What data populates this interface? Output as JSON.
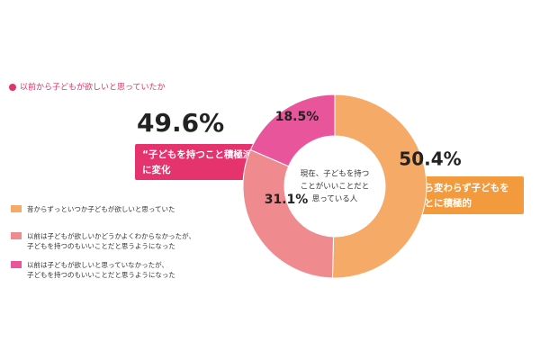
{
  "chart_data": {
    "type": "donut",
    "title": "以前から子どもが欲しいと思っていたか",
    "categories": [
      "昔からずっといつか子どもが欲しいと思っていた",
      "以前は子どもが欲しいかどうかよくわからなかったが、\n子どもを持つのもいいことだと思うようになった",
      "以前は子どもが欲しいと思っていなかったが、\n子どもを持つのもいいことだと思うようになった"
    ],
    "values": [
      50.4,
      31.1,
      18.5
    ],
    "value_labels": [
      "50.4%",
      "31.1%",
      "18.5%"
    ],
    "colors": [
      "#f6aa68",
      "#ef8b8f",
      "#e9559b"
    ],
    "center_label": [
      "現在、子どもを持つ",
      "ことがいいことだと",
      "思っている人"
    ],
    "annotations": [
      {
        "text": "49.6%",
        "callout": [
          "“子どもを持つこと積極派”",
          "に変化"
        ]
      },
      {
        "callout": [
          "以前から変わらず子どもを",
          "持つことに積極的"
        ]
      }
    ]
  }
}
